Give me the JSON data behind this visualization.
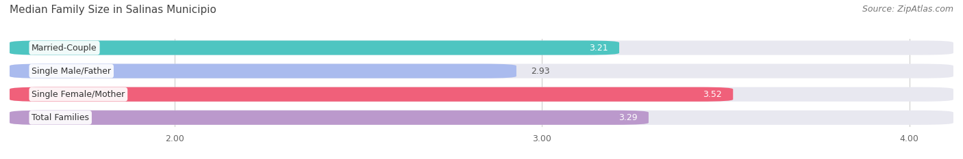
{
  "title": "Median Family Size in Salinas Municipio",
  "source": "Source: ZipAtlas.com",
  "categories": [
    "Married-Couple",
    "Single Male/Father",
    "Single Female/Mother",
    "Total Families"
  ],
  "values": [
    3.21,
    2.93,
    3.52,
    3.29
  ],
  "bar_colors": [
    "#4EC5C1",
    "#AABBEE",
    "#F0607A",
    "#BB99CC"
  ],
  "bar_bg_color": "#E8E8F0",
  "xlim_data": [
    2.0,
    4.0
  ],
  "xlim_plot": [
    1.55,
    4.12
  ],
  "xticks": [
    2.0,
    3.0,
    4.0
  ],
  "xtick_labels": [
    "2.00",
    "3.00",
    "4.00"
  ],
  "value_label_inside": [
    true,
    false,
    true,
    true
  ],
  "value_label_colors_inside": [
    "white",
    "#555555",
    "white",
    "white"
  ],
  "title_fontsize": 11,
  "source_fontsize": 9,
  "tick_fontsize": 9,
  "cat_fontsize": 9,
  "val_fontsize": 9,
  "bar_height": 0.62,
  "bar_gap": 0.38,
  "fig_width": 14.06,
  "fig_height": 2.33
}
